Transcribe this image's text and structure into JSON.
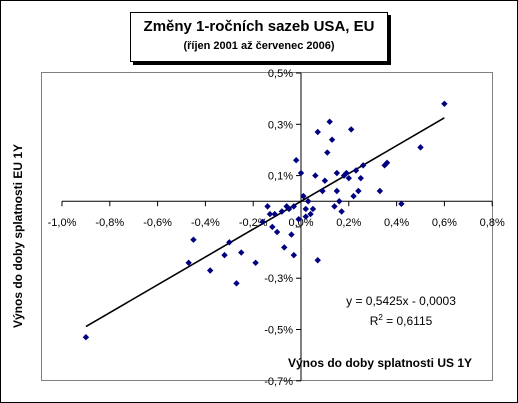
{
  "chart_data": {
    "type": "scatter",
    "title": "Změny 1-ročních sazeb USA, EU",
    "subtitle": "(říjen 2001 až červenec 2006)",
    "xlabel": "Výnos do doby splatnosti US 1Y",
    "ylabel": "Výnos do doby splatnosti EU 1Y",
    "xlim": [
      -1.0,
      0.8
    ],
    "ylim": [
      -0.7,
      0.5
    ],
    "x_ticks": [
      -1.0,
      -0.8,
      -0.6,
      -0.4,
      -0.2,
      0.0,
      0.2,
      0.4,
      0.6,
      0.8
    ],
    "x_tick_labels": [
      "-1,0%",
      "-0,8%",
      "-0,6%",
      "-0,4%",
      "-0,2%",
      "0,0%",
      "0,2%",
      "0,4%",
      "0,6%",
      "0,8%"
    ],
    "y_ticks": [
      0.5,
      0.3,
      0.1,
      -0.1,
      -0.3,
      -0.5,
      -0.7
    ],
    "y_tick_labels": [
      "0,5%",
      "0,3%",
      "0,1%",
      "",
      "-0,3%",
      "-0,5%",
      "-0,7%"
    ],
    "grid": false,
    "marker_color": "#000080",
    "trendline_color": "#000000",
    "equation_label": "y = 0,5425x - 0,0003",
    "r2_prefix": "R",
    "r2_exponent": "2",
    "r2_suffix": " = 0,6115",
    "trendline": {
      "slope": 0.5425,
      "intercept": -0.0003,
      "x_range": [
        -0.9,
        0.6
      ]
    },
    "series": [
      {
        "points": [
          [
            -0.9,
            -0.53
          ],
          [
            -0.47,
            -0.24
          ],
          [
            -0.45,
            -0.15
          ],
          [
            -0.38,
            -0.27
          ],
          [
            -0.32,
            -0.21
          ],
          [
            -0.3,
            -0.16
          ],
          [
            -0.27,
            -0.32
          ],
          [
            -0.25,
            -0.2
          ],
          [
            -0.19,
            -0.24
          ],
          [
            -0.16,
            -0.08
          ],
          [
            -0.14,
            -0.02
          ],
          [
            -0.13,
            -0.05
          ],
          [
            -0.12,
            -0.1
          ],
          [
            -0.11,
            -0.05
          ],
          [
            -0.1,
            -0.12
          ],
          [
            -0.08,
            -0.04
          ],
          [
            -0.07,
            -0.18
          ],
          [
            -0.06,
            -0.02
          ],
          [
            -0.05,
            -0.03
          ],
          [
            -0.04,
            -0.13
          ],
          [
            -0.03,
            -0.21
          ],
          [
            -0.03,
            -0.02
          ],
          [
            -0.02,
            0.16
          ],
          [
            -0.01,
            -0.07
          ],
          [
            0.0,
            0.11
          ],
          [
            0.01,
            0.02
          ],
          [
            0.02,
            -0.03
          ],
          [
            0.02,
            -0.06
          ],
          [
            0.03,
            0.0
          ],
          [
            0.04,
            -0.05
          ],
          [
            0.05,
            -0.03
          ],
          [
            0.06,
            0.1
          ],
          [
            0.07,
            0.27
          ],
          [
            0.07,
            -0.23
          ],
          [
            0.09,
            0.04
          ],
          [
            0.1,
            0.08
          ],
          [
            0.11,
            0.19
          ],
          [
            0.12,
            0.31
          ],
          [
            0.13,
            0.24
          ],
          [
            0.14,
            -0.02
          ],
          [
            0.15,
            0.04
          ],
          [
            0.15,
            0.11
          ],
          [
            0.16,
            0.0
          ],
          [
            0.17,
            -0.04
          ],
          [
            0.18,
            0.1
          ],
          [
            0.19,
            0.11
          ],
          [
            0.2,
            0.09
          ],
          [
            0.21,
            0.28
          ],
          [
            0.22,
            0.02
          ],
          [
            0.23,
            0.12
          ],
          [
            0.24,
            0.04
          ],
          [
            0.25,
            0.09
          ],
          [
            0.26,
            0.14
          ],
          [
            0.33,
            0.04
          ],
          [
            0.35,
            0.14
          ],
          [
            0.36,
            0.15
          ],
          [
            0.42,
            -0.01
          ],
          [
            0.5,
            0.21
          ],
          [
            0.6,
            0.38
          ]
        ]
      }
    ]
  }
}
